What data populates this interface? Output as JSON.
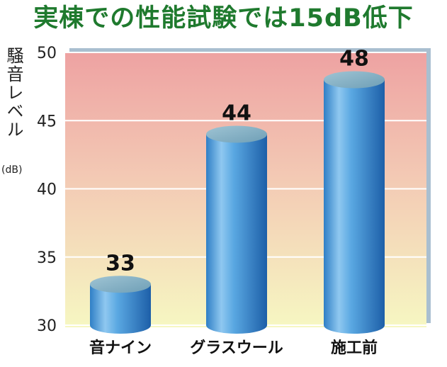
{
  "chart_data": {
    "type": "bar",
    "title": "実棟での性能試験では15dB低下",
    "ylabel": "騒音レベル",
    "yunit": "(dB)",
    "xlabel": "",
    "categories": [
      "音ナイン",
      "グラスウール",
      "施工前"
    ],
    "values": [
      33,
      44,
      48
    ],
    "ylim": [
      30,
      50
    ],
    "yticks": [
      30,
      35,
      40,
      45,
      50
    ],
    "grid": true,
    "legend": "none",
    "colors": {
      "title": "#1f7a2e",
      "bar": "#3b8fd4",
      "background_top": "#eea2a2",
      "background_bottom": "#f6f7c2"
    }
  }
}
